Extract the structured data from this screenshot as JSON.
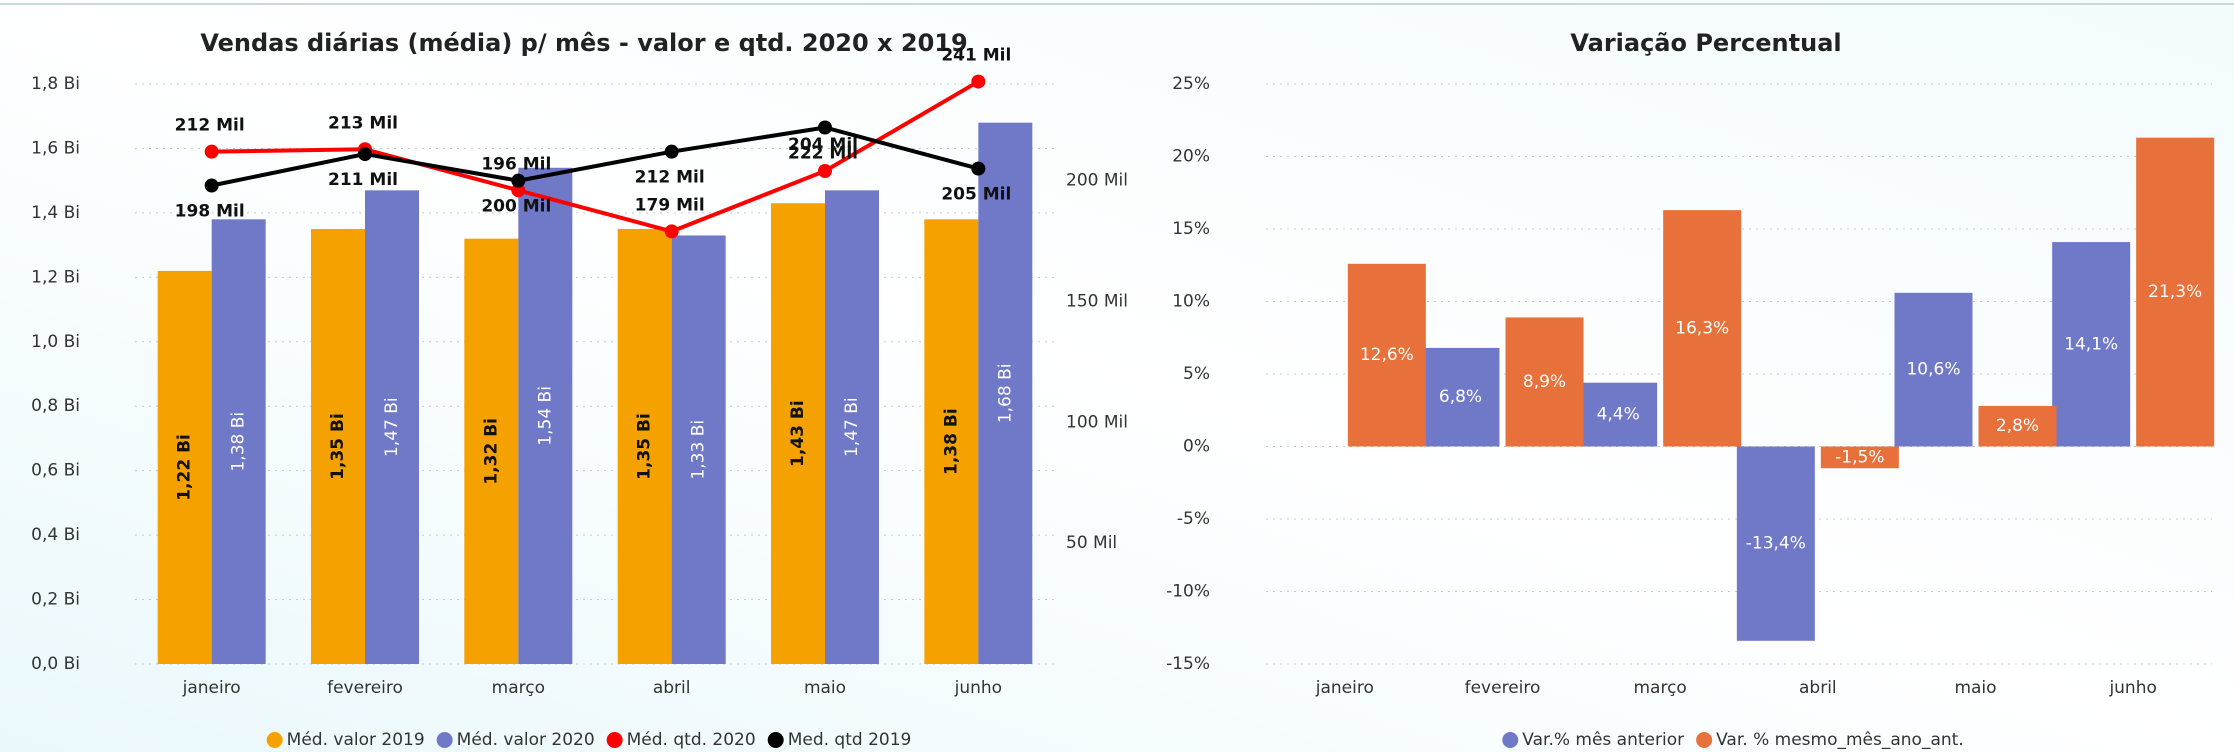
{
  "chart_data": [
    {
      "type": "combo",
      "title": "Vendas diárias (média) p/ mês - valor e qtd. 2020 x 2019",
      "categories": [
        "janeiro",
        "fevereiro",
        "março",
        "abril",
        "maio",
        "junho"
      ],
      "ylim": [
        0,
        1.8
      ],
      "yticks": [
        {
          "value": 0,
          "label": "0,0 Bi"
        },
        {
          "value": 0.2,
          "label": "0,2 Bi"
        },
        {
          "value": 0.4,
          "label": "0,4 Bi"
        },
        {
          "value": 0.6,
          "label": "0,6 Bi"
        },
        {
          "value": 0.8,
          "label": "0,8 Bi"
        },
        {
          "value": 1.0,
          "label": "1,0 Bi"
        },
        {
          "value": 1.2,
          "label": "1,2 Bi"
        },
        {
          "value": 1.4,
          "label": "1,4 Bi"
        },
        {
          "value": 1.6,
          "label": "1,6 Bi"
        },
        {
          "value": 1.8,
          "label": "1,8 Bi"
        }
      ],
      "y2lim": [
        0,
        240
      ],
      "y2ticks": [
        {
          "value": 50,
          "label": "50 Mil"
        },
        {
          "value": 100,
          "label": "100 Mil"
        },
        {
          "value": 150,
          "label": "150 Mil"
        },
        {
          "value": 200,
          "label": "200 Mil"
        }
      ],
      "grid": true,
      "series": [
        {
          "name": "Méd. valor 2019",
          "type": "bar",
          "color": "#f5a200",
          "values": [
            1.22,
            1.35,
            1.32,
            1.35,
            1.43,
            1.38
          ],
          "value_labels": [
            "1,22 Bi",
            "1,35 Bi",
            "1,32 Bi",
            "1,35 Bi",
            "1,43 Bi",
            "1,38 Bi"
          ]
        },
        {
          "name": "Méd. valor 2020",
          "type": "bar",
          "color": "#7079c8",
          "values": [
            1.38,
            1.47,
            1.54,
            1.33,
            1.47,
            1.68
          ],
          "value_labels": [
            "1,38 Bi",
            "1,47 Bi",
            "1,54 Bi",
            "1,33 Bi",
            "1,47 Bi",
            "1,68 Bi"
          ]
        },
        {
          "name": "Méd. qtd. 2020",
          "type": "line",
          "axis": "y2",
          "color": "#ff0000",
          "values": [
            212,
            213,
            196,
            179,
            204,
            241
          ],
          "value_labels": [
            "212 Mil",
            "213 Mil",
            "196 Mil",
            "179 Mil",
            "204 Mil",
            "241 Mil"
          ]
        },
        {
          "name": "Med. qtd 2019",
          "type": "line",
          "axis": "y2",
          "color": "#000000",
          "values": [
            198,
            211,
            200,
            212,
            222,
            205
          ],
          "value_labels": [
            "198 Mil",
            "211 Mil",
            "200 Mil",
            "212 Mil",
            "222 Mil",
            "205 Mil"
          ]
        }
      ]
    },
    {
      "type": "bar",
      "title": "Variação Percentual",
      "categories": [
        "janeiro",
        "fevereiro",
        "março",
        "abril",
        "maio",
        "junho"
      ],
      "ylim": [
        -15,
        25
      ],
      "yticks": [
        {
          "value": -15,
          "label": "-15%"
        },
        {
          "value": -10,
          "label": "-10%"
        },
        {
          "value": -5,
          "label": "-5%"
        },
        {
          "value": 0,
          "label": "0%"
        },
        {
          "value": 5,
          "label": "5%"
        },
        {
          "value": 10,
          "label": "10%"
        },
        {
          "value": 15,
          "label": "15%"
        },
        {
          "value": 20,
          "label": "20%"
        },
        {
          "value": 25,
          "label": "25%"
        }
      ],
      "grid": true,
      "series": [
        {
          "name": "Var.% mês anterior",
          "color": "#7079c8",
          "values": [
            null,
            6.8,
            4.4,
            -13.4,
            10.6,
            14.1
          ],
          "value_labels": [
            null,
            "6,8%",
            "4,4%",
            "-13,4%",
            "10,6%",
            "14,1%"
          ]
        },
        {
          "name": "Var. % mesmo_mês_ano_ant.",
          "color": "#e8703a",
          "values": [
            12.6,
            8.9,
            16.3,
            -1.5,
            2.8,
            21.3
          ],
          "value_labels": [
            "12,6%",
            "8,9%",
            "16,3%",
            "-1,5%",
            "2,8%",
            "21,3%"
          ]
        }
      ]
    }
  ]
}
